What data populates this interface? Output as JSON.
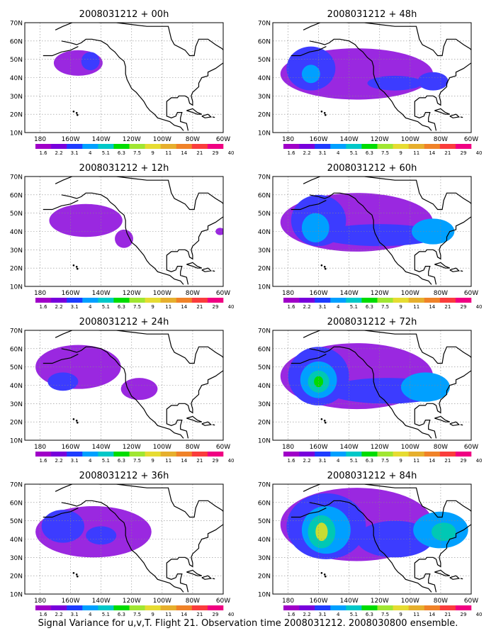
{
  "panels": [
    {
      "title": "2008031212 + 00h",
      "blobs": [
        {
          "lon": -155,
          "lat": 48,
          "rx": 16,
          "ry": 7,
          "level": 0
        },
        {
          "lon": -147,
          "lat": 49,
          "rx": 6,
          "ry": 5,
          "level": 1
        }
      ]
    },
    {
      "title": "2008031212 + 12h",
      "blobs": [
        {
          "lon": -150,
          "lat": 46,
          "rx": 24,
          "ry": 9,
          "level": 0
        },
        {
          "lon": -125,
          "lat": 36,
          "rx": 6,
          "ry": 5,
          "level": 0
        },
        {
          "lon": -62,
          "lat": 40,
          "rx": 3,
          "ry": 2,
          "level": 0
        }
      ]
    },
    {
      "title": "2008031212 + 24h",
      "blobs": [
        {
          "lon": -155,
          "lat": 50,
          "rx": 28,
          "ry": 12,
          "level": 0
        },
        {
          "lon": -115,
          "lat": 38,
          "rx": 12,
          "ry": 6,
          "level": 0
        },
        {
          "lon": -165,
          "lat": 42,
          "rx": 10,
          "ry": 5,
          "level": 1
        }
      ]
    },
    {
      "title": "2008031212 + 36h",
      "blobs": [
        {
          "lon": -145,
          "lat": 44,
          "rx": 38,
          "ry": 14,
          "level": 0
        },
        {
          "lon": -165,
          "lat": 47,
          "rx": 14,
          "ry": 9,
          "level": 1
        },
        {
          "lon": -140,
          "lat": 42,
          "rx": 10,
          "ry": 5,
          "level": 1
        }
      ]
    },
    {
      "title": "2008031212 + 48h",
      "blobs": [
        {
          "lon": -135,
          "lat": 42,
          "rx": 50,
          "ry": 14,
          "level": 0
        },
        {
          "lon": -165,
          "lat": 45,
          "rx": 16,
          "ry": 12,
          "level": 1
        },
        {
          "lon": -165,
          "lat": 42,
          "rx": 6,
          "ry": 5,
          "level": 2
        },
        {
          "lon": -110,
          "lat": 37,
          "rx": 18,
          "ry": 4,
          "level": 1
        },
        {
          "lon": -85,
          "lat": 38,
          "rx": 10,
          "ry": 5,
          "level": 1
        }
      ]
    },
    {
      "title": "2008031212 + 60h",
      "blobs": [
        {
          "lon": -135,
          "lat": 45,
          "rx": 50,
          "ry": 16,
          "level": 0
        },
        {
          "lon": -160,
          "lat": 46,
          "rx": 18,
          "ry": 14,
          "level": 1
        },
        {
          "lon": -162,
          "lat": 42,
          "rx": 9,
          "ry": 8,
          "level": 2
        },
        {
          "lon": -120,
          "lat": 38,
          "rx": 40,
          "ry": 6,
          "level": 1
        },
        {
          "lon": -85,
          "lat": 40,
          "rx": 14,
          "ry": 7,
          "level": 2
        }
      ]
    },
    {
      "title": "2008031212 + 72h",
      "blobs": [
        {
          "lon": -135,
          "lat": 45,
          "rx": 50,
          "ry": 18,
          "level": 0
        },
        {
          "lon": -160,
          "lat": 45,
          "rx": 20,
          "ry": 16,
          "level": 1
        },
        {
          "lon": -160,
          "lat": 43,
          "rx": 12,
          "ry": 10,
          "level": 2
        },
        {
          "lon": -160,
          "lat": 42,
          "rx": 7,
          "ry": 6,
          "level": 3
        },
        {
          "lon": -160,
          "lat": 42,
          "rx": 3,
          "ry": 3,
          "level": 4
        },
        {
          "lon": -115,
          "lat": 37,
          "rx": 40,
          "ry": 7,
          "level": 1
        },
        {
          "lon": -90,
          "lat": 39,
          "rx": 16,
          "ry": 8,
          "level": 2
        }
      ]
    },
    {
      "title": "2008031212 + 84h",
      "blobs": [
        {
          "lon": -135,
          "lat": 48,
          "rx": 50,
          "ry": 20,
          "level": 0
        },
        {
          "lon": -155,
          "lat": 47,
          "rx": 26,
          "ry": 18,
          "level": 1
        },
        {
          "lon": -155,
          "lat": 45,
          "rx": 16,
          "ry": 13,
          "level": 2
        },
        {
          "lon": -158,
          "lat": 44,
          "rx": 9,
          "ry": 9,
          "level": 3
        },
        {
          "lon": -158,
          "lat": 44,
          "rx": 4,
          "ry": 5,
          "level": 5
        },
        {
          "lon": -110,
          "lat": 40,
          "rx": 25,
          "ry": 10,
          "level": 1
        },
        {
          "lon": -80,
          "lat": 45,
          "rx": 18,
          "ry": 10,
          "level": 2
        },
        {
          "lon": -78,
          "lat": 44,
          "rx": 8,
          "ry": 5,
          "level": 3
        }
      ]
    }
  ],
  "lat_ticks": [
    "70N",
    "60N",
    "50N",
    "40N",
    "30N",
    "20N",
    "10N"
  ],
  "lon_ticks": [
    "180",
    "160W",
    "140W",
    "120W",
    "100W",
    "80W",
    "60W"
  ],
  "colorbar_labels": [
    "1.6",
    "2.2",
    "3.1",
    "4",
    "5.1",
    "6.3",
    "7.5",
    "9",
    "11",
    "14",
    "21",
    "29",
    "40"
  ],
  "colorbar_colors": [
    "#a000c8",
    "#7800dc",
    "#1e3cff",
    "#00a0ff",
    "#00c8c8",
    "#00dc00",
    "#a0e632",
    "#e6dc32",
    "#e6af2d",
    "#f08228",
    "#fa3c3c",
    "#f00082"
  ],
  "blob_colors": [
    "#9a28e0",
    "#3c3cff",
    "#00a0ff",
    "#00c8b4",
    "#00dc00",
    "#c8dc32"
  ],
  "caption": "Signal Variance for u,v,T. Flight 21. Observation time 2008031212. 2008030800 ensemble."
}
